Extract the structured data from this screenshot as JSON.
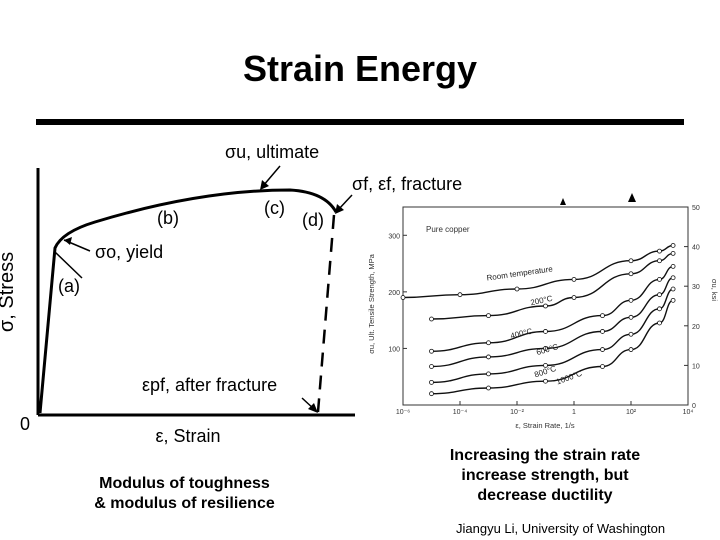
{
  "slide": {
    "title": "Strain Energy",
    "caption_left": [
      "Modulus of toughness",
      "& modulus of resilience"
    ],
    "caption_right": [
      "Increasing the strain rate",
      "increase strength, but",
      "decrease ductility"
    ],
    "footer": "Jiangyu Li, University of Washington"
  },
  "stress_strain": {
    "ylabel": "σ, Stress",
    "xlabel": "ε, Strain",
    "origin": "0",
    "labels": {
      "ultimate": "σu, ultimate",
      "fracture": "σf, εf, fracture",
      "yield": "σo, yield",
      "after_fracture": "εpf, after fracture",
      "a": "(a)",
      "b": "(b)",
      "c": "(c)",
      "d": "(d)"
    }
  },
  "chart_data": {
    "type": "line",
    "title": "",
    "annotation": "Pure copper",
    "xlabel": "ε, Strain Rate, 1/s",
    "ylabel": "σu, Ult. Tensile Strength, MPa",
    "ylabel_right": "σu, ksi",
    "x_scale": "log",
    "xlim": [
      1e-06,
      10000.0
    ],
    "ylim": [
      0,
      350
    ],
    "y_right_lim": [
      0,
      50
    ],
    "x_ticks": [
      "10⁻⁶",
      "10⁻⁴",
      "10⁻²",
      "1",
      "10²",
      "10⁴"
    ],
    "y_ticks": [
      100,
      200,
      300
    ],
    "y_right_ticks": [
      0,
      10,
      20,
      30,
      40,
      50
    ],
    "grid": false,
    "series": [
      {
        "name": "Room temperature",
        "x": [
          1e-06,
          0.0001,
          0.01,
          1,
          100,
          1000,
          3000
        ],
        "y": [
          190,
          195,
          205,
          222,
          255,
          272,
          282
        ]
      },
      {
        "name": "200°C",
        "x": [
          1e-05,
          0.001,
          0.1,
          1,
          100,
          1000,
          3000
        ],
        "y": [
          152,
          158,
          175,
          190,
          232,
          255,
          268
        ]
      },
      {
        "name": "400°C",
        "x": [
          1e-05,
          0.001,
          0.1,
          10,
          100,
          1000,
          3000
        ],
        "y": [
          95,
          110,
          130,
          158,
          185,
          222,
          245
        ]
      },
      {
        "name": "600°C",
        "x": [
          1e-05,
          0.001,
          0.1,
          10,
          100,
          1000,
          3000
        ],
        "y": [
          68,
          85,
          100,
          130,
          155,
          195,
          225
        ]
      },
      {
        "name": "800°C",
        "x": [
          1e-05,
          0.001,
          0.1,
          10,
          100,
          1000,
          3000
        ],
        "y": [
          40,
          55,
          70,
          98,
          125,
          170,
          205
        ]
      },
      {
        "name": "1000°C",
        "x": [
          1e-05,
          0.001,
          0.1,
          10,
          100,
          1000,
          3000
        ],
        "y": [
          20,
          30,
          42,
          68,
          98,
          145,
          185
        ]
      }
    ]
  }
}
